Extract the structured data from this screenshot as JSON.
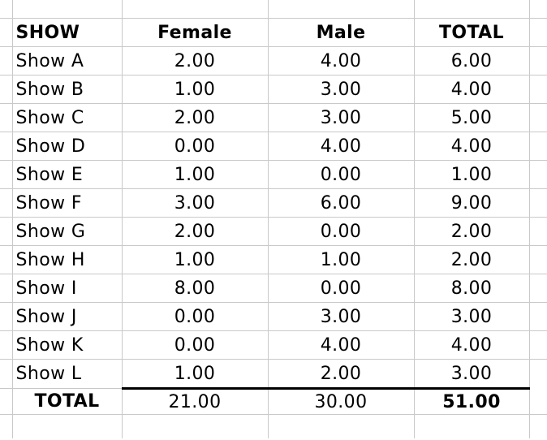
{
  "table": {
    "header": {
      "show": "SHOW",
      "female": "Female",
      "male": "Male",
      "total": "TOTAL"
    },
    "rows": [
      {
        "show": "Show A",
        "female": "2.00",
        "male": "4.00",
        "total": "6.00"
      },
      {
        "show": "Show B",
        "female": "1.00",
        "male": "3.00",
        "total": "4.00"
      },
      {
        "show": "Show C",
        "female": "2.00",
        "male": "3.00",
        "total": "5.00"
      },
      {
        "show": "Show D",
        "female": "0.00",
        "male": "4.00",
        "total": "4.00"
      },
      {
        "show": "Show E",
        "female": "1.00",
        "male": "0.00",
        "total": "1.00"
      },
      {
        "show": "Show F",
        "female": "3.00",
        "male": "6.00",
        "total": "9.00"
      },
      {
        "show": "Show G",
        "female": "2.00",
        "male": "0.00",
        "total": "2.00"
      },
      {
        "show": "Show H",
        "female": "1.00",
        "male": "1.00",
        "total": "2.00"
      },
      {
        "show": "Show I",
        "female": "8.00",
        "male": "0.00",
        "total": "8.00"
      },
      {
        "show": "Show J",
        "female": "0.00",
        "male": "3.00",
        "total": "3.00"
      },
      {
        "show": "Show K",
        "female": "0.00",
        "male": "4.00",
        "total": "4.00"
      },
      {
        "show": "Show L",
        "female": "1.00",
        "male": "2.00",
        "total": "3.00"
      }
    ],
    "totals": {
      "label": "TOTAL",
      "female": "21.00",
      "male": "30.00",
      "total": "51.00"
    }
  },
  "colors": {
    "gridline": "#c9c9c9",
    "totals_rule": "#000000",
    "background": "#ffffff",
    "text": "#000000"
  }
}
